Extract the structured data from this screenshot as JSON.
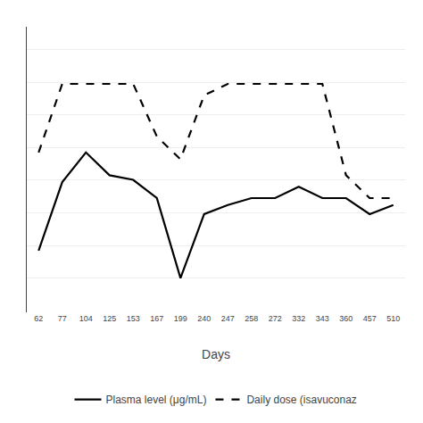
{
  "chart_data": {
    "type": "line",
    "xlabel": "Days",
    "categories": [
      "62",
      "77",
      "104",
      "125",
      "153",
      "167",
      "199",
      "240",
      "247",
      "258",
      "272",
      "332",
      "343",
      "360",
      "457",
      "510"
    ],
    "series": [
      {
        "name": "Plasma level (μg/mL)",
        "color": "#000000",
        "line_style": "solid",
        "values": [
          2.2,
          5.2,
          6.5,
          5.5,
          5.3,
          4.5,
          1.0,
          3.8,
          4.2,
          4.5,
          4.5,
          5.0,
          4.5,
          4.5,
          3.8,
          4.2
        ]
      },
      {
        "name": "Daily dose (isavuconaz",
        "color": "#000000",
        "line_style": "dashed",
        "values": [
          6.5,
          9.5,
          9.5,
          9.5,
          9.5,
          7.2,
          6.2,
          9.0,
          9.5,
          9.5,
          9.5,
          9.5,
          9.5,
          5.5,
          4.5,
          4.5
        ]
      }
    ],
    "ylim": [
      -0.5,
      12
    ],
    "yticks": [
      1,
      2.4285714285714284,
      3.857142857142857,
      5.285714285714286,
      6.714285714285714,
      8.142857142857142,
      9.571428571428571,
      11
    ],
    "grid": true,
    "tick_labels": "x",
    "legend": "bottom"
  }
}
